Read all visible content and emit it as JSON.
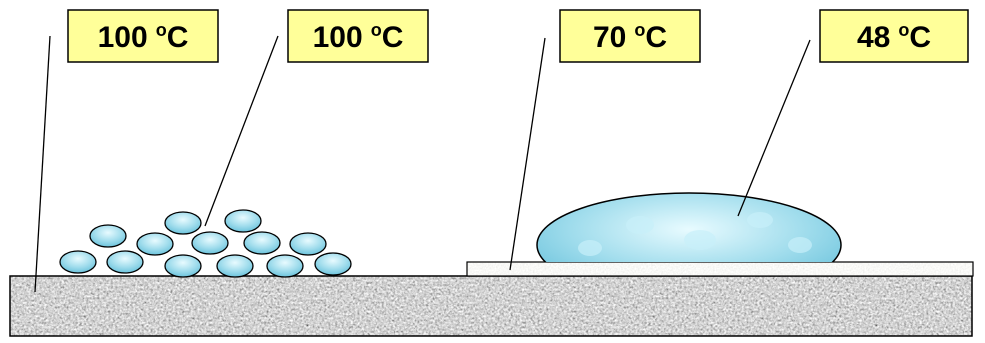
{
  "labels": [
    {
      "number": "100",
      "degree": "o",
      "unit": "C"
    },
    {
      "number": "100",
      "degree": "o",
      "unit": "C"
    },
    {
      "number": "70",
      "degree": "o",
      "unit": "C"
    },
    {
      "number": "48",
      "degree": "o",
      "unit": "C"
    }
  ]
}
